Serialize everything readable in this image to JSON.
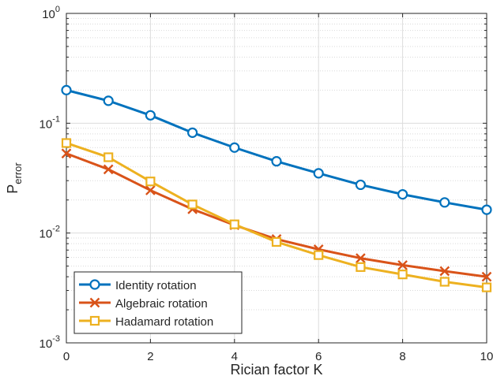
{
  "chart_data": {
    "type": "line",
    "xlabel": "Rician factor K",
    "ylabel_main": "P",
    "ylabel_sub": "error",
    "xlim": [
      0,
      10
    ],
    "ylim": [
      0.001,
      1
    ],
    "y_scale": "log",
    "grid": true,
    "x_ticks": [
      0,
      2,
      4,
      6,
      8,
      10
    ],
    "x_tick_labels": [
      "0",
      "2",
      "4",
      "6",
      "8",
      "10"
    ],
    "y_ticks": [
      {
        "value": 1,
        "base": "10",
        "exp": "0"
      },
      {
        "value": 0.1,
        "base": "10",
        "exp": "-1"
      },
      {
        "value": 0.01,
        "base": "10",
        "exp": "-2"
      },
      {
        "value": 0.001,
        "base": "10",
        "exp": "-3"
      }
    ],
    "legend_position": "bottom-left",
    "x": [
      0,
      1,
      2,
      3,
      4,
      5,
      6,
      7,
      8,
      9,
      10
    ],
    "series": [
      {
        "name": "Identity rotation",
        "marker": "circle",
        "color": "#0072BD",
        "values": [
          0.2,
          0.16,
          0.118,
          0.082,
          0.06,
          0.045,
          0.035,
          0.0275,
          0.0225,
          0.019,
          0.0163
        ]
      },
      {
        "name": "Algebraic rotation",
        "marker": "x",
        "color": "#D95319",
        "values": [
          0.053,
          0.038,
          0.0245,
          0.0165,
          0.0118,
          0.0088,
          0.0071,
          0.0059,
          0.0051,
          0.0045,
          0.004
        ]
      },
      {
        "name": "Hadamard rotation",
        "marker": "square",
        "color": "#EDB120",
        "values": [
          0.066,
          0.049,
          0.0295,
          0.0182,
          0.012,
          0.0083,
          0.0063,
          0.0049,
          0.0042,
          0.0036,
          0.0032
        ]
      }
    ]
  }
}
